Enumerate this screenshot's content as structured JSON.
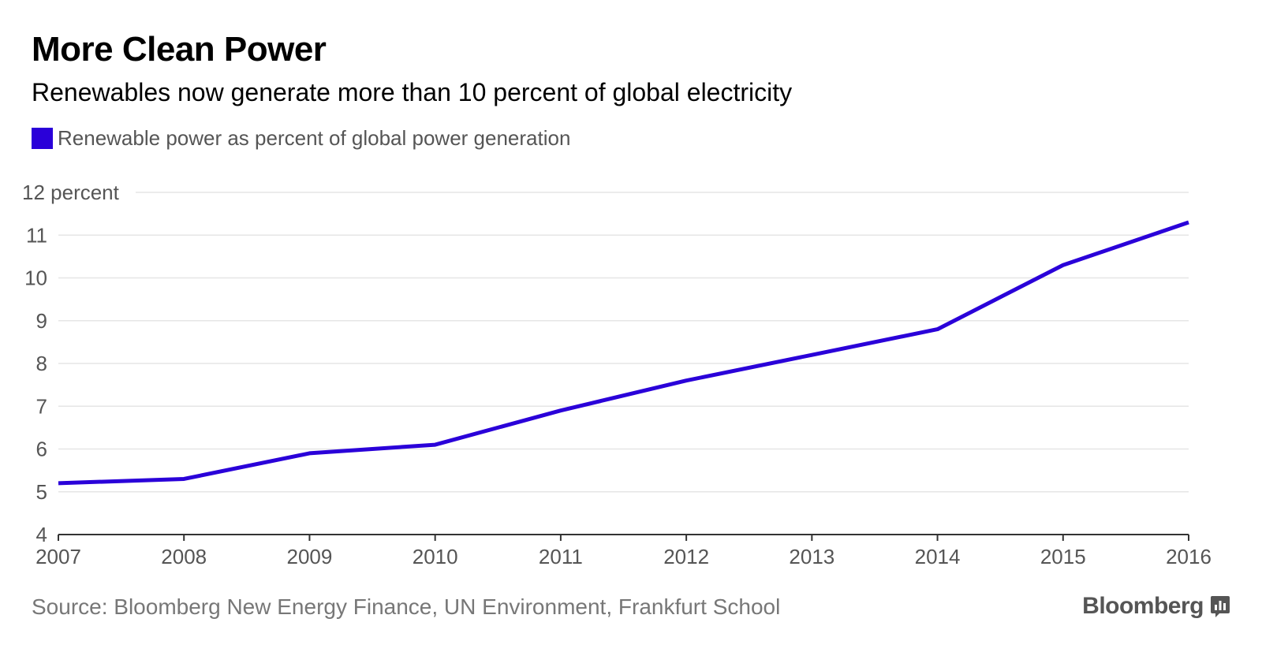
{
  "header": {
    "title": "More Clean Power",
    "subtitle": "Renewables now generate more than 10 percent of global electricity"
  },
  "legend": {
    "label": "Renewable power as percent of global power generation",
    "color": "#2a00d9"
  },
  "footer": {
    "source": "Source: Bloomberg New Energy Finance, UN Environment, Frankfurt School",
    "brand": "Bloomberg",
    "brand_icon": "bar-chart-icon"
  },
  "colors": {
    "series": "#2a00d9",
    "grid": "#e6e6e6",
    "axis": "#333333",
    "tick_text": "#555555"
  },
  "chart_data": {
    "type": "line",
    "title": "More Clean Power",
    "subtitle": "Renewables now generate more than 10 percent of global electricity",
    "x": [
      2007,
      2008,
      2009,
      2010,
      2011,
      2012,
      2013,
      2014,
      2015,
      2016
    ],
    "series": [
      {
        "name": "Renewable power as percent of global power generation",
        "values": [
          5.2,
          5.3,
          5.9,
          6.1,
          6.9,
          7.6,
          8.2,
          8.8,
          10.3,
          11.3
        ]
      }
    ],
    "xlim": [
      2007,
      2016
    ],
    "ylim": [
      4,
      12
    ],
    "y_ticks": [
      4,
      5,
      6,
      7,
      8,
      9,
      10,
      11,
      12
    ],
    "y_unit_label": "percent",
    "x_tick_labels": [
      "2007",
      "2008",
      "2009",
      "2010",
      "2011",
      "2012",
      "2013",
      "2014",
      "2015",
      "2016"
    ],
    "grid": true,
    "legend_position": "top-left"
  }
}
